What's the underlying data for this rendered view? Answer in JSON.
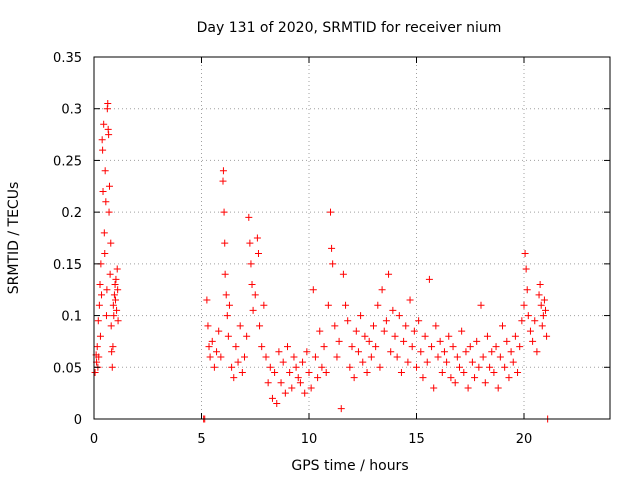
{
  "chart_data": {
    "type": "scatter",
    "title": "Day 131 of 2020, SRMTID for receiver nium",
    "xlabel": "GPS time / hours",
    "ylabel": "SRMTID / TECUs",
    "xlim": [
      0,
      24
    ],
    "ylim": [
      0,
      0.35
    ],
    "xticks": [
      0,
      5,
      10,
      15,
      20
    ],
    "xtick_labels": [
      "0",
      "5",
      "10",
      "15",
      "20"
    ],
    "yticks": [
      0,
      0.05,
      0.1,
      0.15,
      0.2,
      0.25,
      0.3,
      0.35
    ],
    "ytick_labels": [
      "0",
      "0.05",
      "0.1",
      "0.15",
      "0.2",
      "0.25",
      "0.3",
      "0.35"
    ],
    "grid": true,
    "marker": "+",
    "color": "#ff0000",
    "series": [
      {
        "name": "SRMTID",
        "points": [
          [
            0.05,
            0.045
          ],
          [
            0.1,
            0.062
          ],
          [
            0.12,
            0.055
          ],
          [
            0.15,
            0.07
          ],
          [
            0.18,
            0.05
          ],
          [
            0.2,
            0.095
          ],
          [
            0.22,
            0.06
          ],
          [
            0.25,
            0.11
          ],
          [
            0.28,
            0.13
          ],
          [
            0.3,
            0.08
          ],
          [
            0.32,
            0.15
          ],
          [
            0.35,
            0.12
          ],
          [
            0.38,
            0.27
          ],
          [
            0.4,
            0.26
          ],
          [
            0.42,
            0.22
          ],
          [
            0.45,
            0.285
          ],
          [
            0.48,
            0.18
          ],
          [
            0.5,
            0.16
          ],
          [
            0.52,
            0.24
          ],
          [
            0.55,
            0.21
          ],
          [
            0.58,
            0.1
          ],
          [
            0.6,
            0.125
          ],
          [
            0.62,
            0.3
          ],
          [
            0.64,
            0.305
          ],
          [
            0.66,
            0.28
          ],
          [
            0.68,
            0.275
          ],
          [
            0.7,
            0.2
          ],
          [
            0.72,
            0.225
          ],
          [
            0.75,
            0.14
          ],
          [
            0.78,
            0.17
          ],
          [
            0.8,
            0.09
          ],
          [
            0.82,
            0.065
          ],
          [
            0.85,
            0.05
          ],
          [
            0.88,
            0.07
          ],
          [
            0.9,
            0.11
          ],
          [
            0.92,
            0.1
          ],
          [
            0.95,
            0.12
          ],
          [
            0.98,
            0.13
          ],
          [
            1.0,
            0.115
          ],
          [
            1.02,
            0.135
          ],
          [
            1.05,
            0.105
          ],
          [
            1.08,
            0.145
          ],
          [
            1.1,
            0.125
          ],
          [
            1.12,
            0.095
          ],
          [
            5.1,
            0.0
          ],
          [
            5.15,
            0.0
          ],
          [
            5.25,
            0.115
          ],
          [
            5.3,
            0.09
          ],
          [
            5.35,
            0.07
          ],
          [
            5.4,
            0.06
          ],
          [
            5.5,
            0.075
          ],
          [
            5.6,
            0.05
          ],
          [
            5.7,
            0.065
          ],
          [
            5.8,
            0.085
          ],
          [
            5.9,
            0.06
          ],
          [
            6.0,
            0.23
          ],
          [
            6.02,
            0.24
          ],
          [
            6.05,
            0.2
          ],
          [
            6.08,
            0.17
          ],
          [
            6.1,
            0.14
          ],
          [
            6.15,
            0.12
          ],
          [
            6.2,
            0.1
          ],
          [
            6.25,
            0.08
          ],
          [
            6.3,
            0.11
          ],
          [
            6.4,
            0.05
          ],
          [
            6.5,
            0.04
          ],
          [
            6.6,
            0.07
          ],
          [
            6.7,
            0.055
          ],
          [
            6.8,
            0.09
          ],
          [
            6.9,
            0.045
          ],
          [
            7.0,
            0.06
          ],
          [
            7.1,
            0.08
          ],
          [
            7.2,
            0.195
          ],
          [
            7.25,
            0.17
          ],
          [
            7.3,
            0.15
          ],
          [
            7.35,
            0.13
          ],
          [
            7.4,
            0.105
          ],
          [
            7.5,
            0.12
          ],
          [
            7.6,
            0.175
          ],
          [
            7.65,
            0.16
          ],
          [
            7.7,
            0.09
          ],
          [
            7.8,
            0.07
          ],
          [
            7.9,
            0.11
          ],
          [
            8.0,
            0.06
          ],
          [
            8.1,
            0.035
          ],
          [
            8.2,
            0.05
          ],
          [
            8.3,
            0.02
          ],
          [
            8.4,
            0.045
          ],
          [
            8.5,
            0.015
          ],
          [
            8.6,
            0.065
          ],
          [
            8.7,
            0.035
          ],
          [
            8.8,
            0.055
          ],
          [
            8.9,
            0.025
          ],
          [
            9.0,
            0.07
          ],
          [
            9.1,
            0.045
          ],
          [
            9.2,
            0.03
          ],
          [
            9.3,
            0.06
          ],
          [
            9.4,
            0.05
          ],
          [
            9.5,
            0.04
          ],
          [
            9.6,
            0.035
          ],
          [
            9.7,
            0.055
          ],
          [
            9.8,
            0.025
          ],
          [
            9.9,
            0.065
          ],
          [
            10.0,
            0.045
          ],
          [
            10.1,
            0.03
          ],
          [
            10.2,
            0.125
          ],
          [
            10.3,
            0.06
          ],
          [
            10.4,
            0.04
          ],
          [
            10.5,
            0.085
          ],
          [
            10.6,
            0.05
          ],
          [
            10.7,
            0.07
          ],
          [
            10.8,
            0.045
          ],
          [
            10.9,
            0.11
          ],
          [
            11.0,
            0.2
          ],
          [
            11.05,
            0.165
          ],
          [
            11.1,
            0.15
          ],
          [
            11.2,
            0.09
          ],
          [
            11.3,
            0.06
          ],
          [
            11.4,
            0.075
          ],
          [
            11.5,
            0.01
          ],
          [
            11.6,
            0.14
          ],
          [
            11.7,
            0.11
          ],
          [
            11.8,
            0.095
          ],
          [
            11.9,
            0.05
          ],
          [
            12.0,
            0.07
          ],
          [
            12.1,
            0.04
          ],
          [
            12.2,
            0.085
          ],
          [
            12.3,
            0.065
          ],
          [
            12.4,
            0.1
          ],
          [
            12.5,
            0.055
          ],
          [
            12.6,
            0.08
          ],
          [
            12.7,
            0.045
          ],
          [
            12.8,
            0.075
          ],
          [
            12.9,
            0.06
          ],
          [
            13.0,
            0.09
          ],
          [
            13.1,
            0.07
          ],
          [
            13.2,
            0.11
          ],
          [
            13.3,
            0.05
          ],
          [
            13.4,
            0.125
          ],
          [
            13.5,
            0.085
          ],
          [
            13.6,
            0.095
          ],
          [
            13.7,
            0.14
          ],
          [
            13.8,
            0.065
          ],
          [
            13.9,
            0.105
          ],
          [
            14.0,
            0.08
          ],
          [
            14.1,
            0.06
          ],
          [
            14.2,
            0.1
          ],
          [
            14.3,
            0.045
          ],
          [
            14.4,
            0.075
          ],
          [
            14.5,
            0.09
          ],
          [
            14.6,
            0.055
          ],
          [
            14.7,
            0.115
          ],
          [
            14.8,
            0.07
          ],
          [
            14.9,
            0.085
          ],
          [
            15.0,
            0.05
          ],
          [
            15.1,
            0.095
          ],
          [
            15.2,
            0.065
          ],
          [
            15.3,
            0.04
          ],
          [
            15.4,
            0.08
          ],
          [
            15.5,
            0.055
          ],
          [
            15.6,
            0.135
          ],
          [
            15.7,
            0.07
          ],
          [
            15.8,
            0.03
          ],
          [
            15.9,
            0.09
          ],
          [
            16.0,
            0.06
          ],
          [
            16.1,
            0.075
          ],
          [
            16.2,
            0.045
          ],
          [
            16.3,
            0.065
          ],
          [
            16.4,
            0.055
          ],
          [
            16.5,
            0.08
          ],
          [
            16.6,
            0.04
          ],
          [
            16.7,
            0.07
          ],
          [
            16.8,
            0.035
          ],
          [
            16.9,
            0.06
          ],
          [
            17.0,
            0.05
          ],
          [
            17.1,
            0.085
          ],
          [
            17.2,
            0.045
          ],
          [
            17.3,
            0.065
          ],
          [
            17.4,
            0.03
          ],
          [
            17.5,
            0.07
          ],
          [
            17.6,
            0.055
          ],
          [
            17.7,
            0.04
          ],
          [
            17.8,
            0.075
          ],
          [
            17.9,
            0.05
          ],
          [
            18.0,
            0.11
          ],
          [
            18.1,
            0.06
          ],
          [
            18.2,
            0.035
          ],
          [
            18.3,
            0.08
          ],
          [
            18.4,
            0.05
          ],
          [
            18.5,
            0.065
          ],
          [
            18.6,
            0.045
          ],
          [
            18.7,
            0.07
          ],
          [
            18.8,
            0.03
          ],
          [
            18.9,
            0.06
          ],
          [
            19.0,
            0.09
          ],
          [
            19.1,
            0.05
          ],
          [
            19.2,
            0.075
          ],
          [
            19.3,
            0.04
          ],
          [
            19.4,
            0.065
          ],
          [
            19.5,
            0.055
          ],
          [
            19.6,
            0.08
          ],
          [
            19.7,
            0.045
          ],
          [
            19.8,
            0.07
          ],
          [
            19.9,
            0.095
          ],
          [
            20.0,
            0.11
          ],
          [
            20.05,
            0.16
          ],
          [
            20.1,
            0.145
          ],
          [
            20.15,
            0.125
          ],
          [
            20.2,
            0.1
          ],
          [
            20.3,
            0.085
          ],
          [
            20.4,
            0.075
          ],
          [
            20.5,
            0.095
          ],
          [
            20.6,
            0.065
          ],
          [
            20.7,
            0.12
          ],
          [
            20.75,
            0.13
          ],
          [
            20.8,
            0.11
          ],
          [
            20.85,
            0.09
          ],
          [
            20.9,
            0.1
          ],
          [
            20.95,
            0.115
          ],
          [
            21.0,
            0.105
          ],
          [
            21.05,
            0.08
          ],
          [
            21.1,
            0.0
          ]
        ]
      }
    ]
  }
}
